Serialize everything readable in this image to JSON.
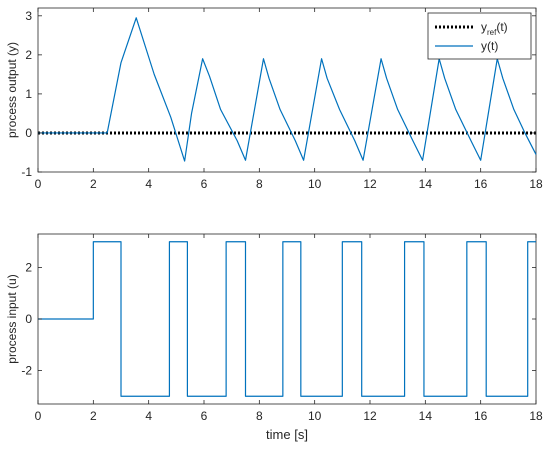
{
  "chart_data": [
    {
      "type": "line",
      "ylabel": "process output (y)",
      "xlabel": "",
      "xlim": [
        0,
        18
      ],
      "ylim": [
        -1,
        3.2
      ],
      "xticks": [
        0,
        2,
        4,
        6,
        8,
        10,
        12,
        14,
        16,
        18
      ],
      "yticks": [
        -1,
        0,
        1,
        2,
        3
      ],
      "legend": {
        "placement": "top-right",
        "entries": [
          {
            "text": "y",
            "sub": "ref",
            "suffix": "(t)",
            "style": "dotted",
            "color": "#000000"
          },
          {
            "text": "y(t)",
            "style": "solid",
            "color": "#0072BD"
          }
        ]
      },
      "series": [
        {
          "name": "y(t)",
          "color": "#0072BD",
          "x": [
            0,
            2.5,
            3.0,
            3.55,
            4.2,
            4.8,
            5.3,
            5.55,
            5.95,
            6.2,
            6.6,
            7.2,
            7.5,
            8.15,
            8.35,
            8.75,
            9.3,
            9.6,
            10.25,
            10.45,
            10.9,
            11.45,
            11.75,
            12.4,
            12.6,
            13.0,
            13.55,
            13.9,
            14.5,
            14.7,
            15.1,
            15.65,
            16.0,
            16.6,
            16.8,
            17.2,
            17.6,
            18.0
          ],
          "y": [
            0,
            0,
            1.8,
            2.95,
            1.5,
            0.4,
            -0.72,
            0.5,
            1.9,
            1.45,
            0.6,
            -0.2,
            -0.7,
            1.9,
            1.4,
            0.6,
            -0.2,
            -0.7,
            1.9,
            1.4,
            0.6,
            -0.2,
            -0.7,
            1.9,
            1.4,
            0.6,
            -0.2,
            -0.7,
            1.9,
            1.4,
            0.6,
            -0.2,
            -0.7,
            1.9,
            1.4,
            0.6,
            0.0,
            -0.55
          ]
        },
        {
          "name": "y_ref(t)",
          "color": "#000000",
          "x": [
            0,
            18
          ],
          "y": [
            0,
            0
          ]
        }
      ]
    },
    {
      "type": "line",
      "ylabel": "process input (u)",
      "xlabel": "time [s]",
      "xlim": [
        0,
        18
      ],
      "ylim": [
        -3.3,
        3.3
      ],
      "xticks": [
        0,
        2,
        4,
        6,
        8,
        10,
        12,
        14,
        16,
        18
      ],
      "yticks": [
        -2,
        0,
        2
      ],
      "series": [
        {
          "name": "u(t)",
          "color": "#0072BD",
          "x": [
            0,
            2.0,
            2.0,
            3.0,
            3.0,
            4.75,
            4.75,
            5.4,
            5.4,
            6.8,
            6.8,
            7.5,
            7.5,
            8.85,
            8.85,
            9.5,
            9.5,
            11.0,
            11.0,
            11.7,
            11.7,
            13.25,
            13.25,
            13.95,
            13.95,
            15.5,
            15.5,
            16.2,
            16.2,
            17.7,
            17.7,
            18.0
          ],
          "y": [
            0,
            0,
            3,
            3,
            -3,
            -3,
            3,
            3,
            -3,
            -3,
            3,
            3,
            -3,
            -3,
            3,
            3,
            -3,
            -3,
            3,
            3,
            -3,
            -3,
            3,
            3,
            -3,
            -3,
            3,
            3,
            -3,
            -3,
            3,
            3
          ]
        }
      ]
    }
  ]
}
